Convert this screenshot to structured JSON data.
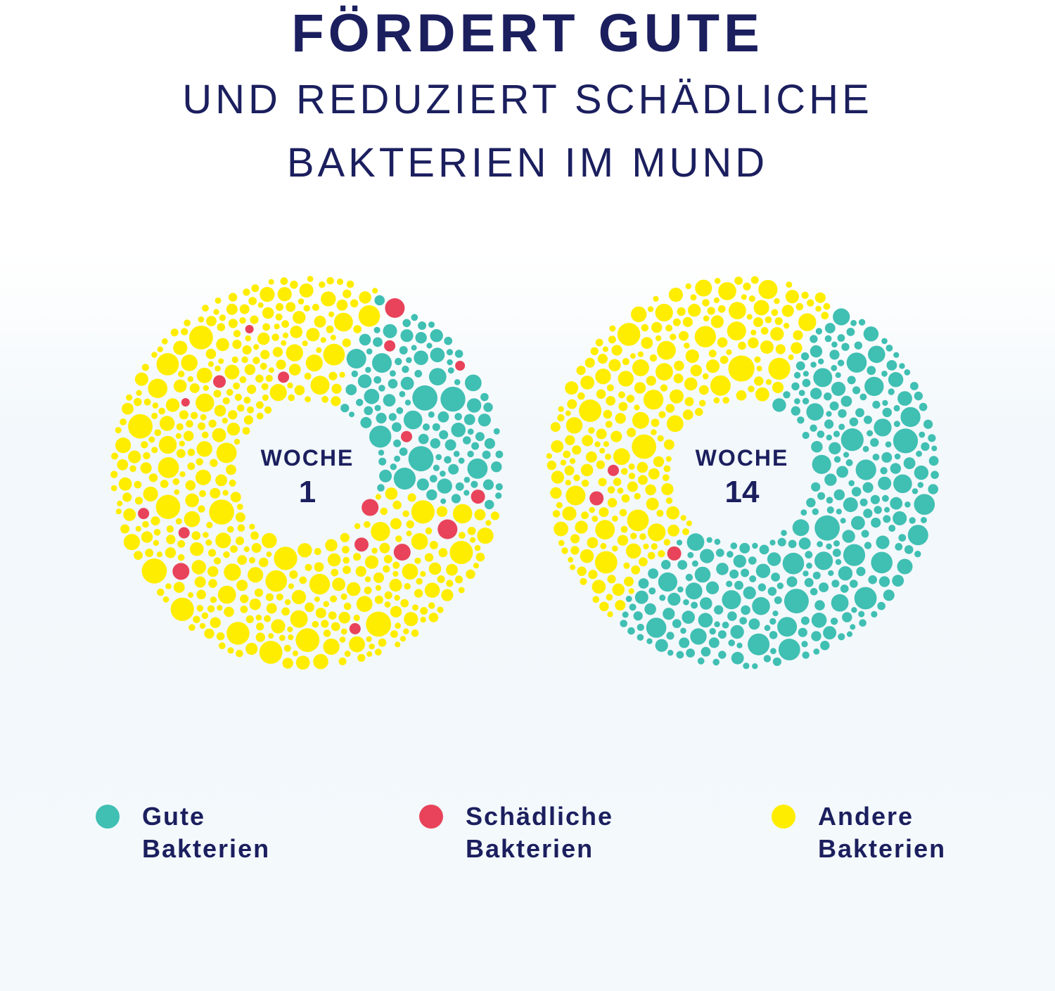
{
  "header": {
    "title": "FÖRDERT GUTE",
    "subtitle_line1": "UND REDUZIERT SCHÄDLICHE",
    "subtitle_line2": "BAKTERIEN IM MUND"
  },
  "colors": {
    "gute": "#40bfb3",
    "schaedliche": "#e8435a",
    "andere": "#ffed00",
    "text": "#1b1f5e"
  },
  "legend": [
    {
      "label": "Gute\nBakterien",
      "color": "#40bfb3"
    },
    {
      "label": "Schädliche\nBakterien",
      "color": "#e8435a"
    },
    {
      "label": "Andere\nBakterien",
      "color": "#ffed00"
    }
  ],
  "chart_data": [
    {
      "type": "packed-circle-donut",
      "center_word": "WOCHE",
      "center_number": "1",
      "categories": [
        "Gute Bakterien",
        "Schädliche Bakterien",
        "Andere Bakterien"
      ],
      "approx_share": [
        0.17,
        0.03,
        0.8
      ]
    },
    {
      "type": "packed-circle-donut",
      "center_word": "WOCHE",
      "center_number": "14",
      "categories": [
        "Gute Bakterien",
        "Schädliche Bakterien",
        "Andere Bakterien"
      ],
      "approx_share": [
        0.52,
        0.01,
        0.47
      ]
    }
  ]
}
